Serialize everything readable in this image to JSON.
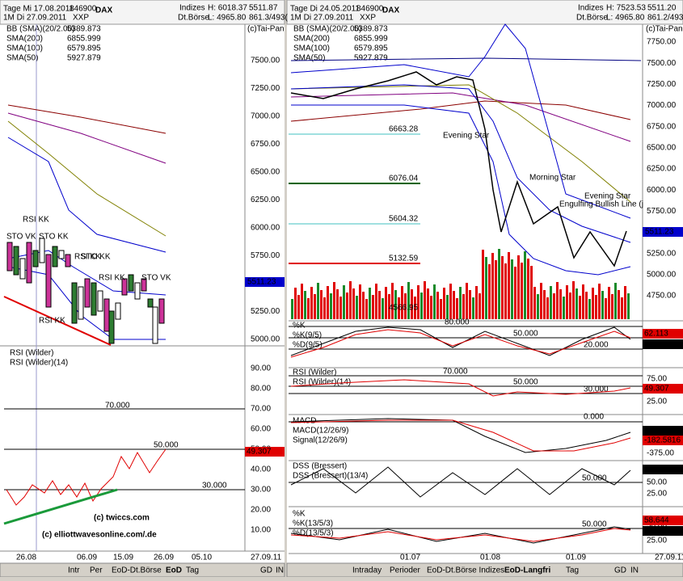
{
  "left": {
    "header": {
      "row1": "Tage Mi 17.08.2011",
      "code": "846900",
      "name": "DAX",
      "index": "Indizes",
      "high": "H: 6018.37",
      "last": "5511.87",
      "row2": "1M  Di 27.09.2011",
      "exch": "XXP",
      "venue": "Dt.Börse",
      "low": "L: 4965.80",
      "pct": "861.3/493("
    },
    "provider": "(c)Tai-Pan",
    "legend": [
      {
        "name": "BB (SMA)(20/2.00)",
        "value": "5389.873"
      },
      {
        "name": "SMA(200)",
        "value": "6855.999"
      },
      {
        "name": "SMA(100)",
        "value": "6579.895"
      },
      {
        "name": "SMA(50)",
        "value": "5927.879"
      }
    ],
    "price_ticks": [
      "7500.00",
      "7250.00",
      "7000.00",
      "6750.00",
      "6500.00",
      "6250.00",
      "6000.00",
      "5750.00",
      "5500.00",
      "5250.00",
      "5000.00"
    ],
    "last_price": "5511.23",
    "annotations": [
      "RSI KK",
      "STO VK",
      "STO KK",
      "RSI KK",
      "STO KK",
      "RSI KK",
      "STO VK",
      "RSI KK"
    ],
    "rsi": {
      "title": "RSI (Wilder)",
      "label": "RSI (Wilder)(14)",
      "ticks": [
        "90.00",
        "80.00",
        "70.00",
        "60.00",
        "50.00",
        "40.00",
        "30.00",
        "20.00",
        "10.00"
      ],
      "levels": [
        "70.000",
        "50.000",
        "30.000"
      ],
      "last": "49.307"
    },
    "dates": [
      "26.08",
      "06.09",
      "15.09",
      "26.09",
      "05.10",
      "27.09.11"
    ],
    "tabs": [
      "Intr",
      "Per",
      "EoD-Dt.Börse",
      "EoD",
      "Tag",
      "GD",
      "IN"
    ],
    "watermark": [
      "(c) twiccs.com",
      "(c) elliottwavesonline.com/.de"
    ]
  },
  "right": {
    "header": {
      "row1": "Tage Di 24.05.2011",
      "code": "846900",
      "name": "DAX",
      "index": "Indizes",
      "high": "H: 7523.53",
      "last": "5511.20",
      "row2": "1M  Di 27.09.2011",
      "exch": "XXP",
      "venue": "Dt.Börse",
      "low": "L: 4965.80",
      "pct": "861.2/493"
    },
    "provider": "(c)Tai-Pan",
    "legend": [
      {
        "name": "BB (SMA)(20/2.00)",
        "value": "5389.873"
      },
      {
        "name": "SMA(200)",
        "value": "6855.999"
      },
      {
        "name": "SMA(100)",
        "value": "6579.895"
      },
      {
        "name": "SMA(50)",
        "value": "5927.879"
      }
    ],
    "price_ticks": [
      "7750.00",
      "7500.00",
      "7250.00",
      "7000.00",
      "6750.00",
      "6500.00",
      "6250.00",
      "6000.00",
      "5750.00",
      "5500.00",
      "5250.00",
      "5000.00",
      "4750.00"
    ],
    "last_price": "5511.23",
    "levels": [
      "6663.28",
      "6076.04",
      "5604.32",
      "5132.59"
    ],
    "volume_label": "4566.95",
    "annotations": [
      "Evening Star",
      "Morning Star",
      "Evening Star",
      "Engulfing Bullish Line (j"
    ],
    "stoch": {
      "title": "%K",
      "label1": "%K(9/5)",
      "label2": "%D(9/5)",
      "levels": [
        "80.000",
        "50.000",
        "20.000"
      ],
      "last": [
        "62.113",
        "52.532"
      ]
    },
    "rsi": {
      "title": "RSI (Wilder)",
      "label": "RSI (Wilder)(14)",
      "ticks": [
        "75.00",
        "50.00",
        "25.00"
      ],
      "levels": [
        "70.000",
        "50.000",
        "30.000"
      ],
      "last": "49.307"
    },
    "macd": {
      "title": "MACD",
      "label1": "MACD(12/26/9)",
      "label2": "Signal(12/26/9)",
      "levels": [
        "0.000"
      ],
      "ticks": [
        "-375.00"
      ],
      "last": [
        "-136.1662",
        "-182.5816"
      ]
    },
    "dss": {
      "title": "DSS (Bressert)",
      "label": "DSS (Bressert)(13/4)",
      "levels": [
        "50.000"
      ],
      "ticks": [
        "50.00",
        "25.00"
      ],
      "last": "76.154"
    },
    "stoch2": {
      "title": "%K",
      "label1": "%K(13/5/3)",
      "label2": "%D(13/5/3)",
      "levels": [
        "50.000"
      ],
      "ticks": [
        "50.00",
        "25.00"
      ],
      "last": [
        "58.644",
        "57.927"
      ]
    },
    "dates": [
      "01.07",
      "01.08",
      "01.09",
      "27.09.11"
    ],
    "tabs": [
      "Intraday",
      "Perioder",
      "EoD-Dt.Börse Indizes",
      "EoD-Langfri",
      "Tag",
      "GD",
      "IN"
    ]
  }
}
